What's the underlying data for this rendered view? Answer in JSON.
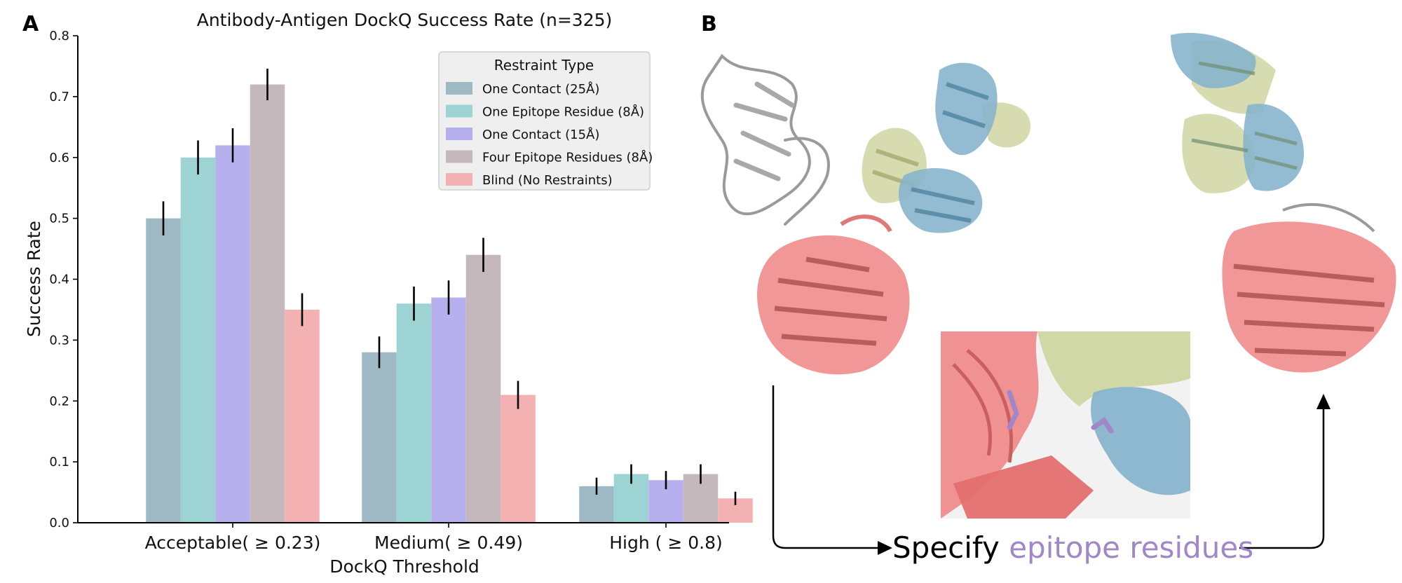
{
  "panel_a": {
    "letter": "A"
  },
  "panel_b": {
    "letter": "B",
    "caption_prefix": "Specify ",
    "caption_highlight": "epitope residues",
    "colors": {
      "antigen": "#f08c8c",
      "heavy": "#87b4cc",
      "light": "#cfd6a2",
      "gray": "#9a9a9a",
      "highlight": "#a186c8"
    }
  },
  "chart_data": {
    "type": "bar",
    "title": "Antibody-Antigen DockQ Success Rate (n=325)",
    "xlabel": "DockQ Threshold",
    "ylabel": "Success Rate",
    "ylim": [
      0,
      0.8
    ],
    "yticks": [
      "0.0",
      "0.1",
      "0.2",
      "0.3",
      "0.4",
      "0.5",
      "0.6",
      "0.7",
      "0.8"
    ],
    "categories": [
      "Acceptable( ≥ 0.23)",
      "Medium( ≥ 0.49)",
      "High ( ≥ 0.8)"
    ],
    "legend_title": "Restraint Type",
    "legend_position": "top-right",
    "series": [
      {
        "name": "One Contact (25Å)",
        "color": "#9fb9c4",
        "values": [
          0.5,
          0.28,
          0.06
        ],
        "errors": [
          0.028,
          0.026,
          0.014
        ]
      },
      {
        "name": "One Epitope Residue (8Å)",
        "color": "#9ed3d3",
        "values": [
          0.6,
          0.36,
          0.08
        ],
        "errors": [
          0.028,
          0.028,
          0.016
        ]
      },
      {
        "name": "One Contact (15Å)",
        "color": "#b7b0ee",
        "values": [
          0.62,
          0.37,
          0.07
        ],
        "errors": [
          0.028,
          0.028,
          0.015
        ]
      },
      {
        "name": "Four Epitope Residues (8Å)",
        "color": "#c5b8bc",
        "values": [
          0.72,
          0.44,
          0.08
        ],
        "errors": [
          0.026,
          0.028,
          0.016
        ]
      },
      {
        "name": "Blind (No Restraints)",
        "color": "#f3b1b1",
        "values": [
          0.35,
          0.21,
          0.04
        ],
        "errors": [
          0.027,
          0.023,
          0.011
        ]
      }
    ]
  }
}
